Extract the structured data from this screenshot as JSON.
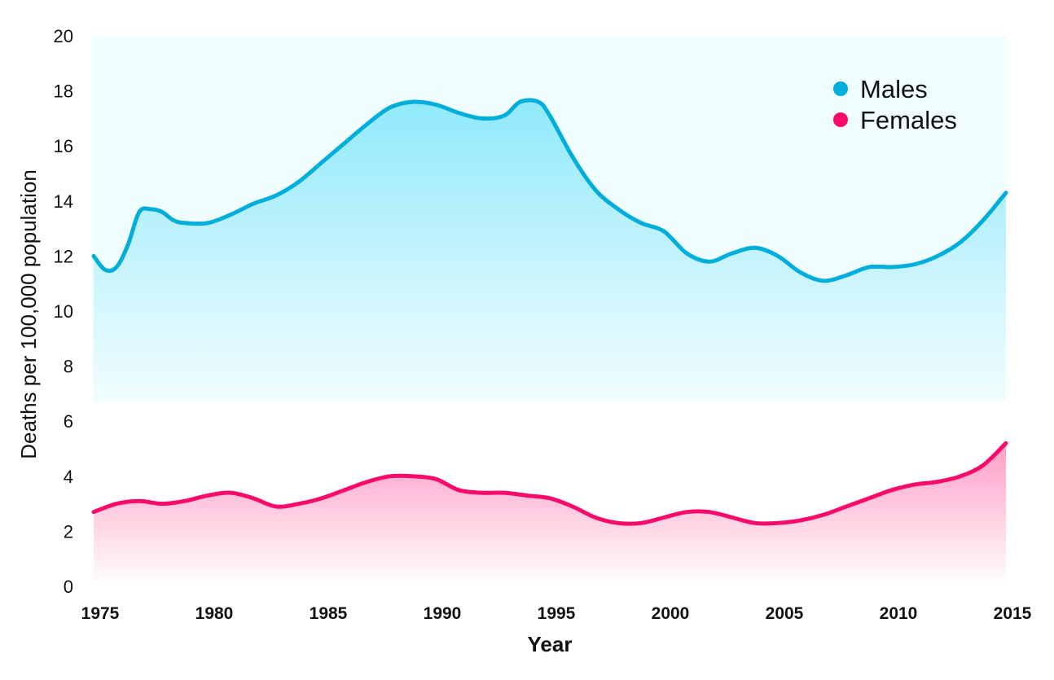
{
  "chart_data": {
    "type": "area",
    "xlabel": "Year",
    "ylabel": "Deaths per 100,000 population",
    "xlim": [
      1975,
      2015
    ],
    "ylim": [
      0,
      20
    ],
    "x_ticks": [
      "1975",
      "1980",
      "1985",
      "1990",
      "1995",
      "2000",
      "2005",
      "2010",
      "2015"
    ],
    "y_ticks": [
      "0",
      "2",
      "4",
      "6",
      "8",
      "10",
      "12",
      "14",
      "16",
      "18",
      "20"
    ],
    "grid": false,
    "legend": {
      "position": "top-right"
    },
    "series": [
      {
        "name": "Males",
        "color": "#00AEDB",
        "x": [
          1975,
          1975.5,
          1976,
          1976.5,
          1977,
          1977.5,
          1978,
          1978.5,
          1979,
          1980,
          1981,
          1982,
          1983,
          1984,
          1985,
          1986,
          1987,
          1988,
          1989,
          1990,
          1991,
          1992,
          1993,
          1993.7,
          1994.5,
          1995,
          1996,
          1997,
          1998,
          1999,
          2000,
          2001,
          2002,
          2003,
          2004,
          2005,
          2006,
          2007,
          2008,
          2009,
          2010,
          2011,
          2012,
          2013,
          2014,
          2015
        ],
        "values": [
          12.0,
          11.5,
          11.6,
          12.4,
          13.6,
          13.7,
          13.6,
          13.3,
          13.2,
          13.2,
          13.5,
          13.9,
          14.2,
          14.7,
          15.4,
          16.1,
          16.8,
          17.4,
          17.6,
          17.5,
          17.2,
          17.0,
          17.1,
          17.6,
          17.6,
          17.1,
          15.6,
          14.4,
          13.7,
          13.2,
          12.9,
          12.1,
          11.8,
          12.1,
          12.3,
          12.0,
          11.4,
          11.1,
          11.3,
          11.6,
          11.6,
          11.7,
          12.0,
          12.5,
          13.3,
          14.3
        ]
      },
      {
        "name": "Females",
        "color": "#FA0A6B",
        "x": [
          1975,
          1976,
          1977,
          1978,
          1979,
          1980,
          1981,
          1982,
          1983,
          1984,
          1985,
          1986,
          1987,
          1988,
          1989,
          1990,
          1991,
          1992,
          1993,
          1994,
          1995,
          1996,
          1997,
          1998,
          1999,
          2000,
          2001,
          2002,
          2003,
          2004,
          2005,
          2006,
          2007,
          2008,
          2009,
          2010,
          2011,
          2012,
          2013,
          2014,
          2015
        ],
        "values": [
          2.7,
          3.0,
          3.1,
          3.0,
          3.1,
          3.3,
          3.4,
          3.2,
          2.9,
          3.0,
          3.2,
          3.5,
          3.8,
          4.0,
          4.0,
          3.9,
          3.5,
          3.4,
          3.4,
          3.3,
          3.2,
          2.9,
          2.5,
          2.3,
          2.3,
          2.5,
          2.7,
          2.7,
          2.5,
          2.3,
          2.3,
          2.4,
          2.6,
          2.9,
          3.2,
          3.5,
          3.7,
          3.8,
          4.0,
          4.4,
          5.2
        ]
      }
    ]
  }
}
